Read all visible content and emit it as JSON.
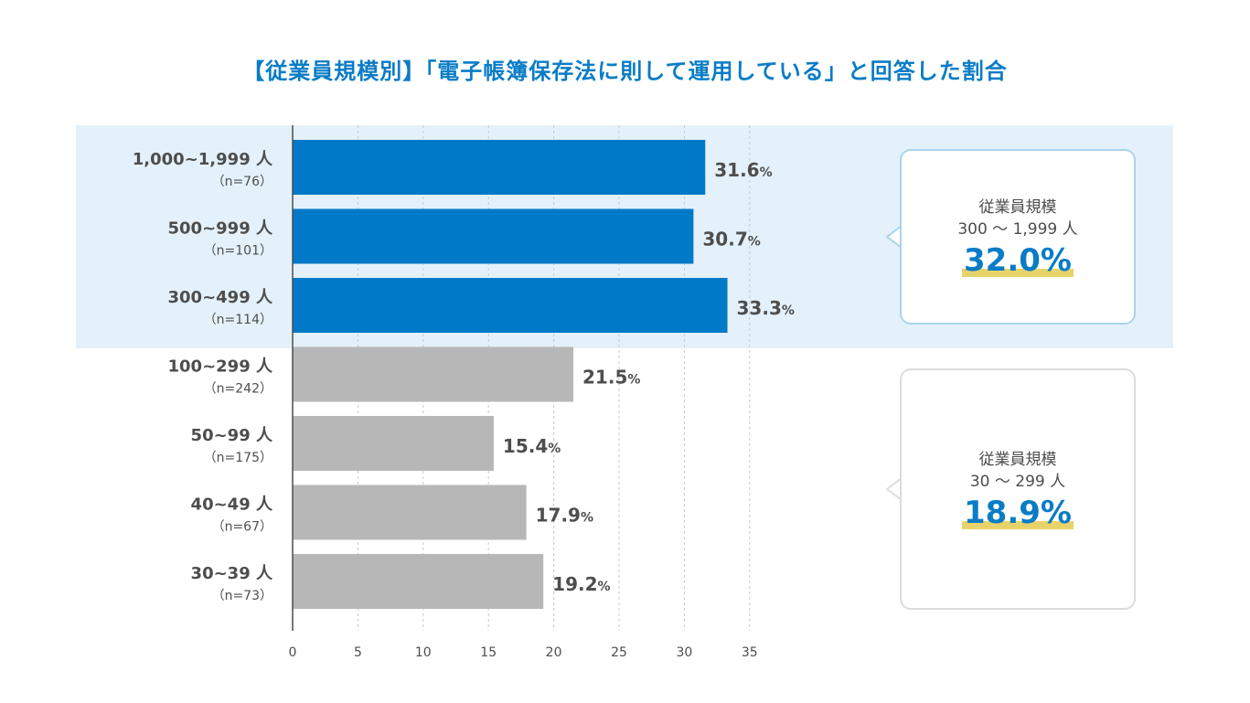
{
  "title": "【従業員規模別】「電子帳簿保存法に則して運用している」と回答した割合",
  "chart_data": {
    "type": "bar",
    "orientation": "horizontal",
    "title": "【従業員規模別】「電子帳簿保存法に則して運用している」と回答した割合",
    "categories": [
      {
        "label": "1,000~1,999 人",
        "n": "（n=76）",
        "value": 31.6,
        "value_label": "31.6",
        "group": "large"
      },
      {
        "label": "500~999 人",
        "n": "（n=101）",
        "value": 30.7,
        "value_label": "30.7",
        "group": "large"
      },
      {
        "label": "300~499 人",
        "n": "（n=114）",
        "value": 33.3,
        "value_label": "33.3",
        "group": "large"
      },
      {
        "label": "100~299 人",
        "n": "（n=242）",
        "value": 21.5,
        "value_label": "21.5",
        "group": "small"
      },
      {
        "label": "50~99 人",
        "n": "（n=175）",
        "value": 15.4,
        "value_label": "15.4",
        "group": "small"
      },
      {
        "label": "40~49 人",
        "n": "（n=67）",
        "value": 17.9,
        "value_label": "17.9",
        "group": "small"
      },
      {
        "label": "30~39 人",
        "n": "（n=73）",
        "value": 19.2,
        "value_label": "19.2",
        "group": "small"
      }
    ],
    "unit": "%",
    "xlim": [
      0,
      35
    ],
    "xticks": [
      0,
      5,
      10,
      15,
      20,
      25,
      30,
      35
    ],
    "grid": "vertical-dashed",
    "colors": {
      "large": "#0079c8",
      "small": "#b7b7b7",
      "highlight_band": "#e4f1fa"
    }
  },
  "callouts": {
    "large": {
      "label": "従業員規模",
      "range": "300 〜 1,999 人",
      "value": "32.0%"
    },
    "small": {
      "label": "従業員規模",
      "range": "30 〜 299 人",
      "value": "18.9%"
    }
  }
}
